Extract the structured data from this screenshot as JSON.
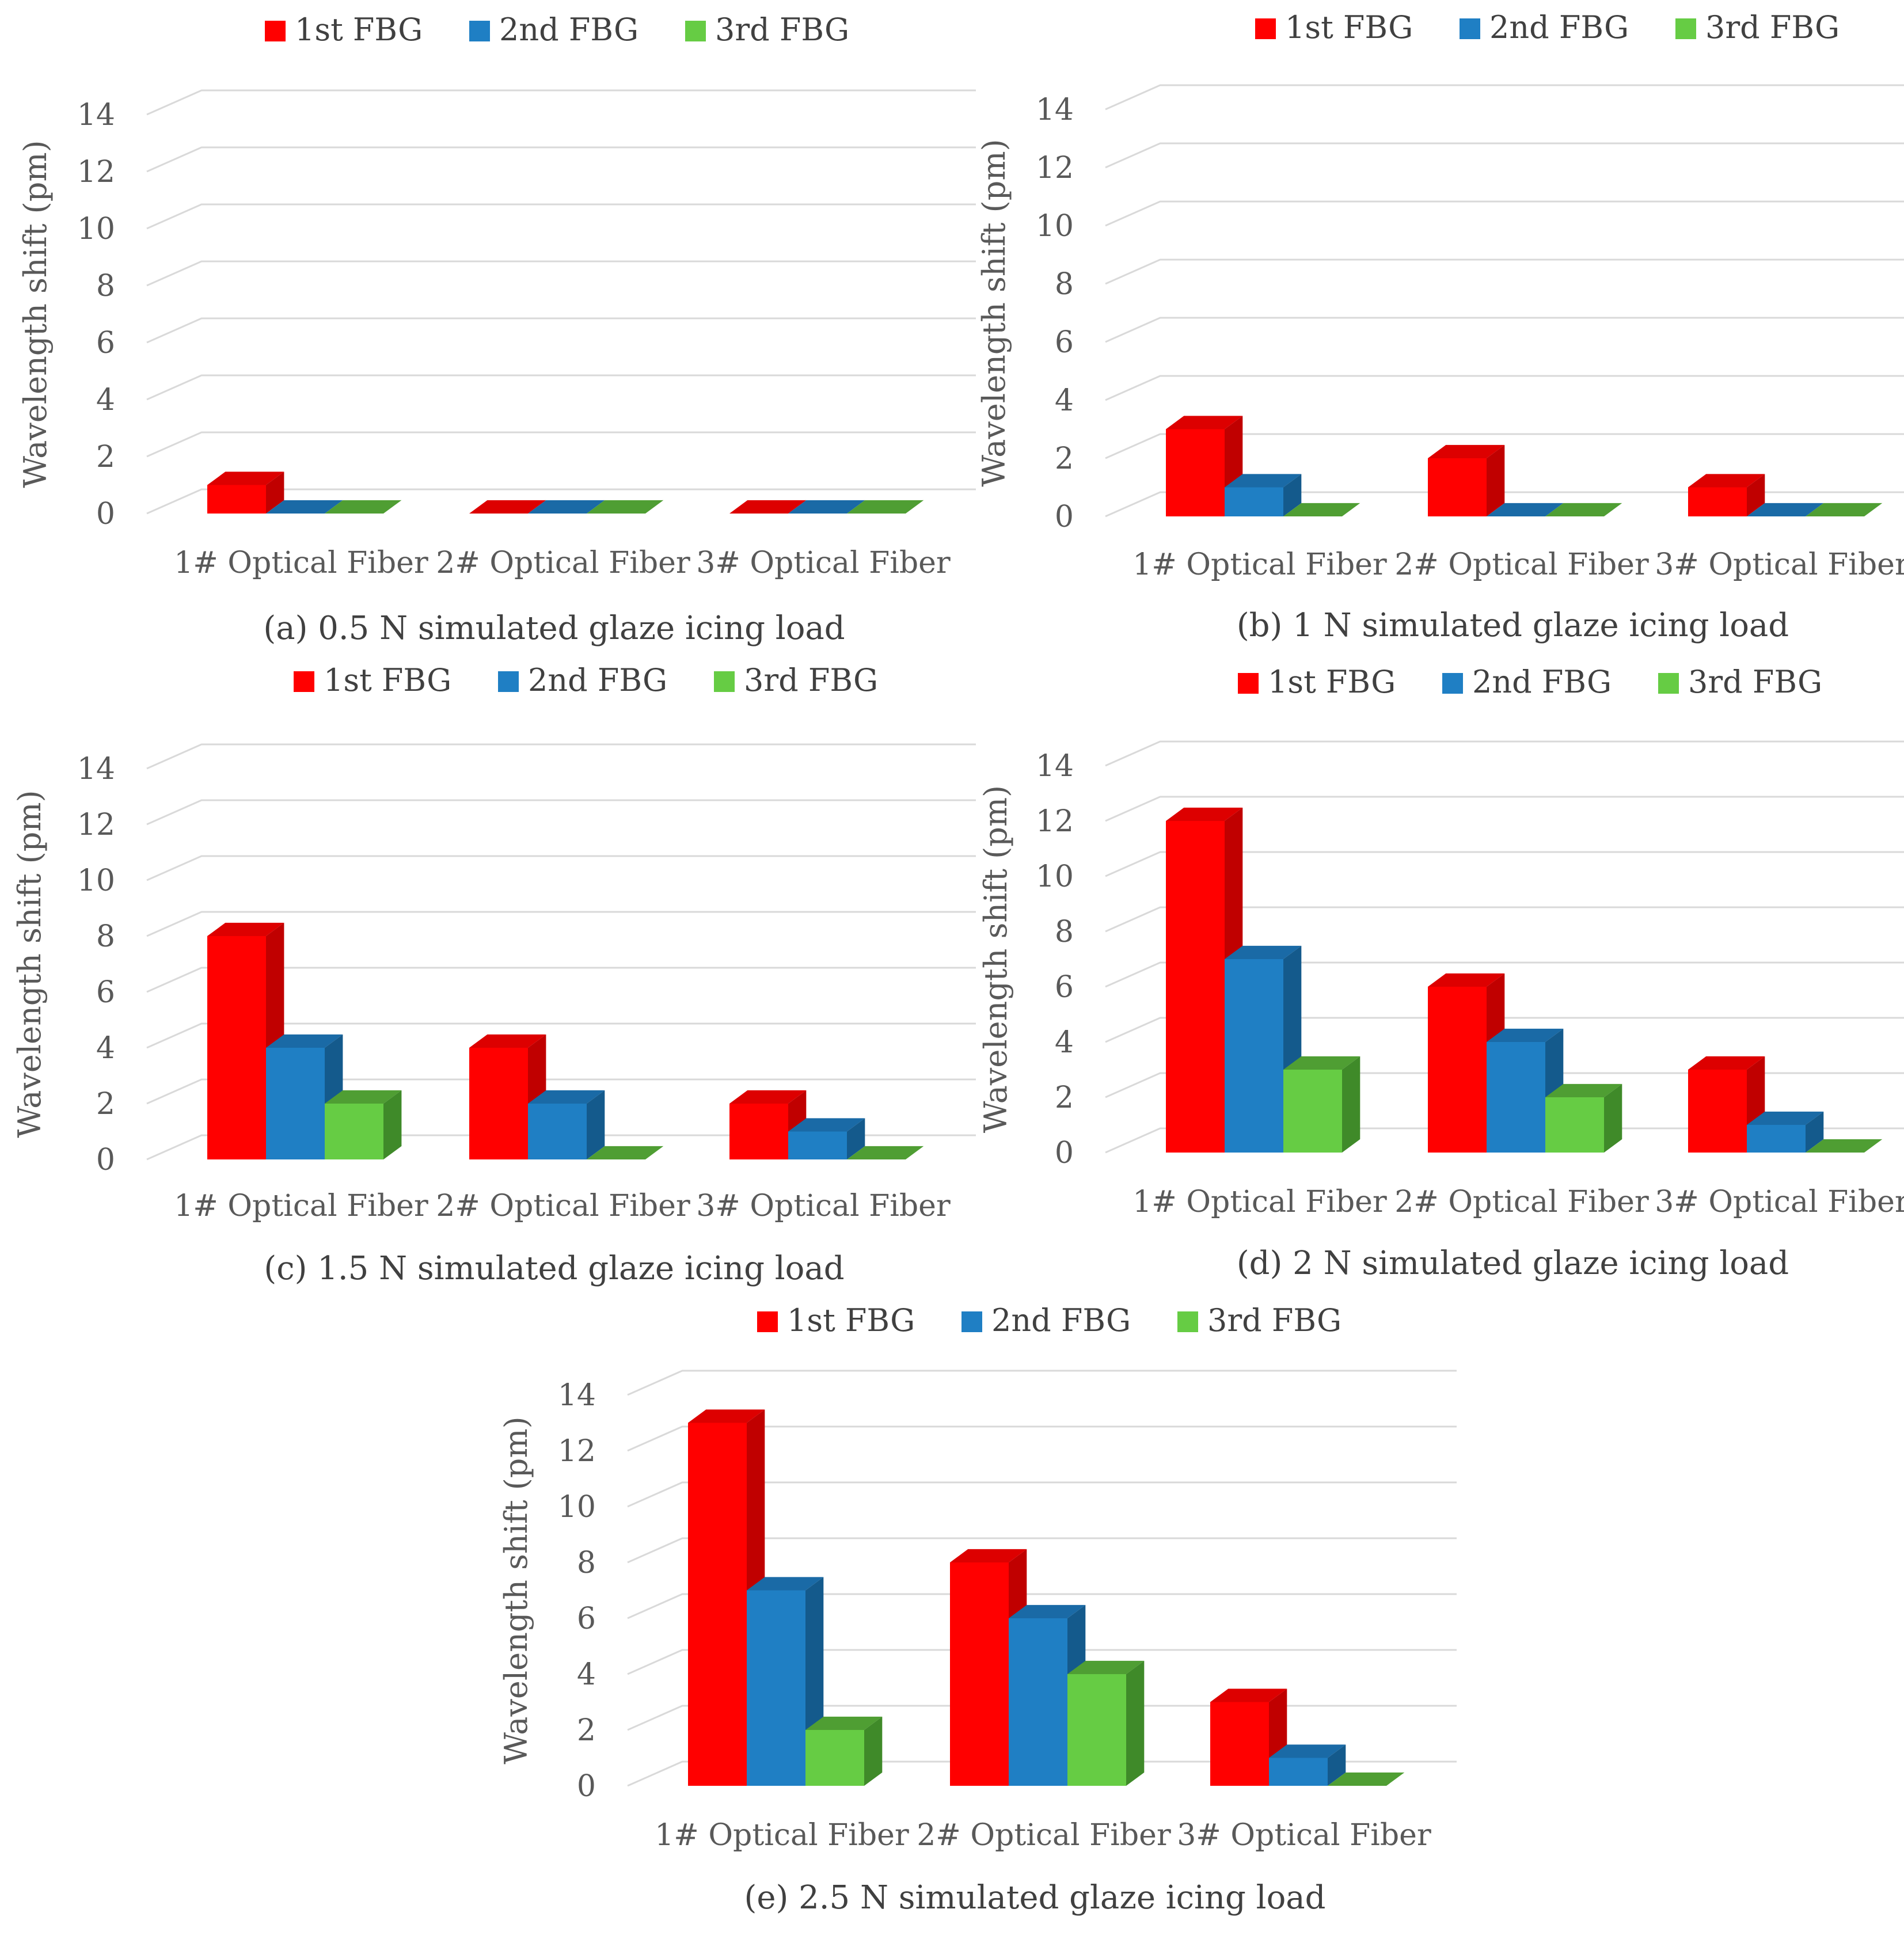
{
  "colors": {
    "series": [
      "#ff0000",
      "#1f7fc4",
      "#66cc44"
    ],
    "series_side": [
      "#c00000",
      "#145a8c",
      "#3f8a29"
    ],
    "series_top": [
      "#dd0000",
      "#1a6aa6",
      "#4f9e33"
    ]
  },
  "chart_data": [
    {
      "id": "a",
      "type": "bar",
      "caption": "(a) 0.5 N simulated glaze icing load",
      "categories": [
        "1# Optical Fiber",
        "2# Optical Fiber",
        "3# Optical Fiber"
      ],
      "ylabel": "Wavelength shift (pm)",
      "ylim": [
        0,
        14
      ],
      "yticks": [
        "0",
        "2",
        "4",
        "6",
        "8",
        "10",
        "12",
        "14"
      ],
      "legend_position": "top-center",
      "series": [
        {
          "name": "1st FBG",
          "values": [
            1,
            0,
            0
          ]
        },
        {
          "name": "2nd FBG",
          "values": [
            0,
            0,
            0
          ]
        },
        {
          "name": "3rd FBG",
          "values": [
            0,
            0,
            0
          ]
        }
      ]
    },
    {
      "id": "b",
      "type": "bar",
      "caption": "(b) 1 N simulated glaze icing load",
      "categories": [
        "1# Optical Fiber",
        "2# Optical Fiber",
        "3# Optical Fiber"
      ],
      "ylabel": "Wavelength shift (pm)",
      "ylim": [
        0,
        14
      ],
      "yticks": [
        "0",
        "2",
        "4",
        "6",
        "8",
        "10",
        "12",
        "14"
      ],
      "legend_position": "top-center",
      "series": [
        {
          "name": "1st FBG",
          "values": [
            3,
            2,
            1
          ]
        },
        {
          "name": "2nd FBG",
          "values": [
            1,
            0,
            0
          ]
        },
        {
          "name": "3rd FBG",
          "values": [
            0,
            0,
            0
          ]
        }
      ]
    },
    {
      "id": "c",
      "type": "bar",
      "caption": "(c) 1.5 N simulated glaze icing load",
      "categories": [
        "1# Optical Fiber",
        "2# Optical Fiber",
        "3# Optical Fiber"
      ],
      "ylabel": "Wavelength shift (pm)",
      "ylim": [
        0,
        14
      ],
      "yticks": [
        "0",
        "2",
        "4",
        "6",
        "8",
        "10",
        "12",
        "14"
      ],
      "legend_position": "top-center",
      "series": [
        {
          "name": "1st FBG",
          "values": [
            8,
            4,
            2
          ]
        },
        {
          "name": "2nd FBG",
          "values": [
            4,
            2,
            1
          ]
        },
        {
          "name": "3rd FBG",
          "values": [
            2,
            0,
            0
          ]
        }
      ]
    },
    {
      "id": "d",
      "type": "bar",
      "caption": "(d) 2 N simulated glaze icing load",
      "categories": [
        "1# Optical Fiber",
        "2# Optical Fiber",
        "3# Optical Fiber"
      ],
      "ylabel": "Wavelength shift (pm)",
      "ylim": [
        0,
        14
      ],
      "yticks": [
        "0",
        "2",
        "4",
        "6",
        "8",
        "10",
        "12",
        "14"
      ],
      "legend_position": "top-center",
      "series": [
        {
          "name": "1st FBG",
          "values": [
            12,
            6,
            3
          ]
        },
        {
          "name": "2nd FBG",
          "values": [
            7,
            4,
            1
          ]
        },
        {
          "name": "3rd FBG",
          "values": [
            3,
            2,
            0
          ]
        }
      ]
    },
    {
      "id": "e",
      "type": "bar",
      "caption": "(e) 2.5 N simulated glaze icing load",
      "categories": [
        "1# Optical Fiber",
        "2# Optical Fiber",
        "3# Optical Fiber"
      ],
      "ylabel": "Wavelength shift (pm)",
      "ylim": [
        0,
        14
      ],
      "yticks": [
        "0",
        "2",
        "4",
        "6",
        "8",
        "10",
        "12",
        "14"
      ],
      "legend_position": "top-center",
      "series": [
        {
          "name": "1st FBG",
          "values": [
            13,
            8,
            3
          ]
        },
        {
          "name": "2nd FBG",
          "values": [
            7,
            6,
            1
          ]
        },
        {
          "name": "3rd FBG",
          "values": [
            2,
            4,
            0
          ]
        }
      ]
    }
  ]
}
